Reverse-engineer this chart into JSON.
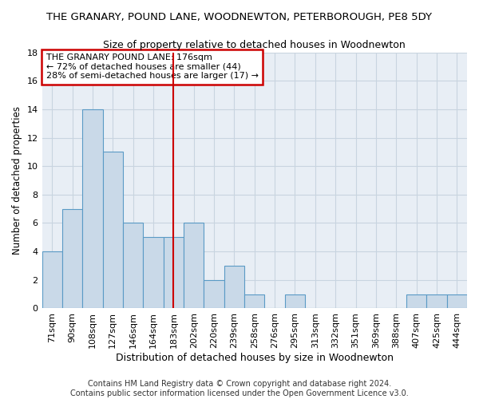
{
  "title": "THE GRANARY, POUND LANE, WOODNEWTON, PETERBOROUGH, PE8 5DY",
  "subtitle": "Size of property relative to detached houses in Woodnewton",
  "xlabel": "Distribution of detached houses by size in Woodnewton",
  "ylabel": "Number of detached properties",
  "categories": [
    "71sqm",
    "90sqm",
    "108sqm",
    "127sqm",
    "146sqm",
    "164sqm",
    "183sqm",
    "202sqm",
    "220sqm",
    "239sqm",
    "258sqm",
    "276sqm",
    "295sqm",
    "313sqm",
    "332sqm",
    "351sqm",
    "369sqm",
    "388sqm",
    "407sqm",
    "425sqm",
    "444sqm"
  ],
  "values": [
    4,
    7,
    14,
    11,
    6,
    5,
    5,
    6,
    2,
    3,
    1,
    0,
    1,
    0,
    0,
    0,
    0,
    0,
    1,
    1,
    1
  ],
  "bar_color": "#c9d9e8",
  "bar_edge_color": "#5a9ac5",
  "vline_x": 6,
  "vline_color": "#cc0000",
  "annotation_box_text": "THE GRANARY POUND LANE: 176sqm\n← 72% of detached houses are smaller (44)\n28% of semi-detached houses are larger (17) →",
  "annotation_box_color": "#cc0000",
  "ylim": [
    0,
    18
  ],
  "yticks": [
    0,
    2,
    4,
    6,
    8,
    10,
    12,
    14,
    16,
    18
  ],
  "footer": "Contains HM Land Registry data © Crown copyright and database right 2024.\nContains public sector information licensed under the Open Government Licence v3.0.",
  "bg_color": "#e8eef5",
  "grid_color": "#c8d4e0",
  "title_fontsize": 9.5,
  "subtitle_fontsize": 9,
  "xlabel_fontsize": 9,
  "ylabel_fontsize": 8.5,
  "tick_fontsize": 8,
  "annot_fontsize": 8,
  "footer_fontsize": 7
}
